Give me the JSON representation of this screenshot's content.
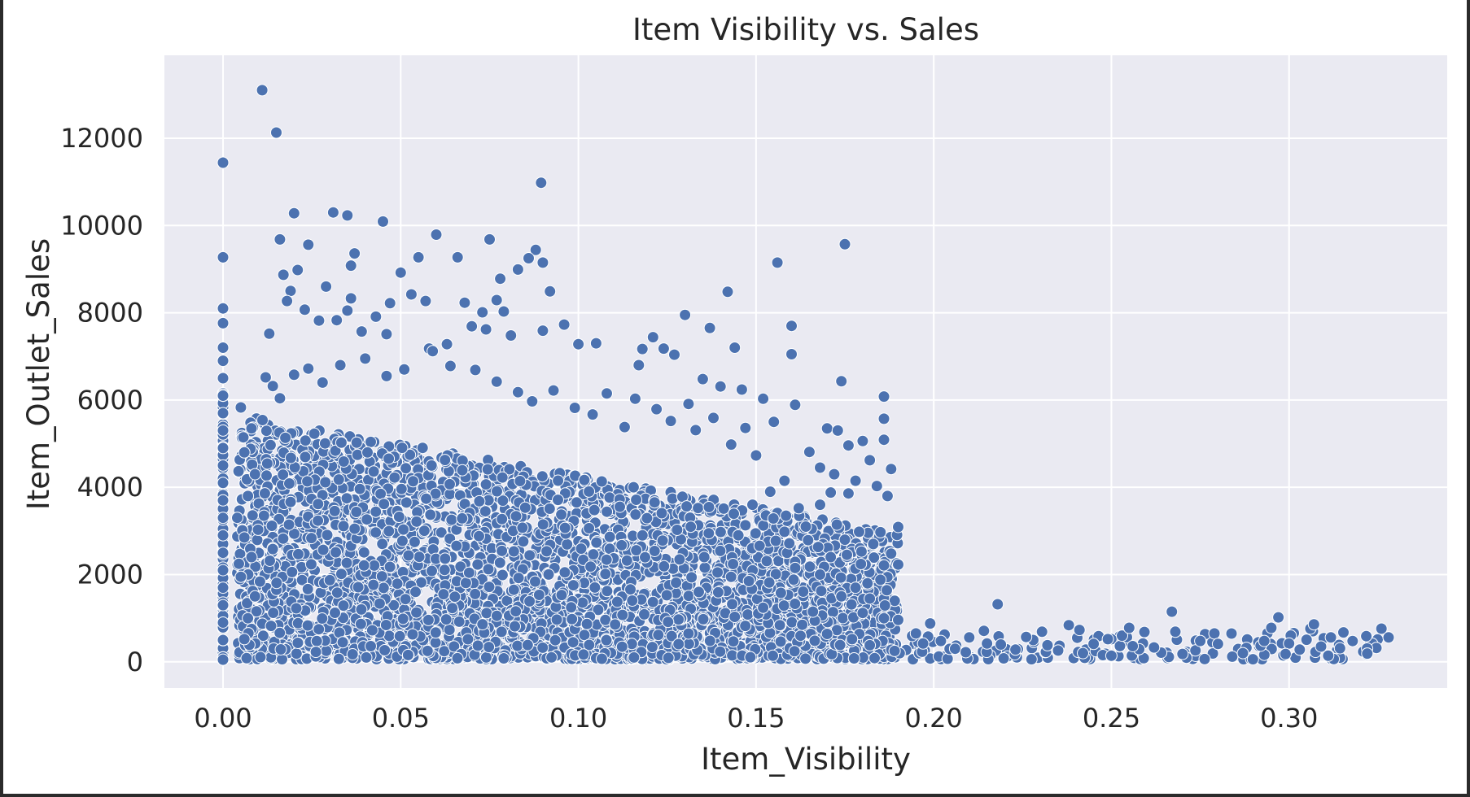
{
  "chart_data": {
    "type": "scatter",
    "title": "Item Visibility vs. Sales",
    "xlabel": "Item_Visibility",
    "ylabel": "Item_Outlet_Sales",
    "xlim": [
      -0.0165,
      0.3445
    ],
    "ylim": [
      -600,
      13900
    ],
    "xticks": [
      0.0,
      0.05,
      0.1,
      0.15,
      0.2,
      0.25,
      0.3
    ],
    "xtick_labels": [
      "0.00",
      "0.05",
      "0.10",
      "0.15",
      "0.20",
      "0.25",
      "0.30"
    ],
    "yticks": [
      0,
      2000,
      4000,
      6000,
      8000,
      10000,
      12000
    ],
    "ytick_labels": [
      "0",
      "2000",
      "4000",
      "6000",
      "8000",
      "10000",
      "12000"
    ],
    "grid": true,
    "colors": {
      "marker": "#4c72b0",
      "marker_edge": "#ffffff",
      "plot_bg": "#eaeaf2",
      "grid": "#ffffff"
    },
    "series": [
      {
        "values_xy": [
          [
            0.0,
            11440
          ],
          [
            0.0,
            9270
          ],
          [
            0.0,
            8100
          ],
          [
            0.0,
            7760
          ],
          [
            0.0,
            7200
          ],
          [
            0.0,
            6900
          ],
          [
            0.0,
            6500
          ],
          [
            0.0,
            6100
          ],
          [
            0.0,
            5700
          ],
          [
            0.0,
            5300
          ],
          [
            0.0,
            4900
          ],
          [
            0.0,
            4500
          ],
          [
            0.0,
            4100
          ],
          [
            0.0,
            3700
          ],
          [
            0.0,
            3300
          ],
          [
            0.0,
            2900
          ],
          [
            0.0,
            2500
          ],
          [
            0.0,
            2100
          ],
          [
            0.0,
            1700
          ],
          [
            0.0,
            1300
          ],
          [
            0.0,
            900
          ],
          [
            0.0,
            500
          ],
          [
            0.0,
            100
          ],
          [
            0.0,
            50
          ],
          [
            0.011,
            13100
          ],
          [
            0.015,
            12130
          ],
          [
            0.0895,
            10980
          ],
          [
            0.02,
            10280
          ],
          [
            0.031,
            10300
          ],
          [
            0.035,
            10230
          ],
          [
            0.045,
            10090
          ],
          [
            0.016,
            9680
          ],
          [
            0.024,
            9560
          ],
          [
            0.06,
            9790
          ],
          [
            0.075,
            9680
          ],
          [
            0.066,
            9270
          ],
          [
            0.055,
            9270
          ],
          [
            0.037,
            9360
          ],
          [
            0.036,
            9080
          ],
          [
            0.05,
            8920
          ],
          [
            0.017,
            8870
          ],
          [
            0.021,
            8980
          ],
          [
            0.029,
            8600
          ],
          [
            0.019,
            8500
          ],
          [
            0.078,
            8780
          ],
          [
            0.083,
            8990
          ],
          [
            0.088,
            9440
          ],
          [
            0.09,
            9150
          ],
          [
            0.086,
            9250
          ],
          [
            0.092,
            8490
          ],
          [
            0.053,
            8420
          ],
          [
            0.057,
            8270
          ],
          [
            0.077,
            8290
          ],
          [
            0.018,
            8270
          ],
          [
            0.023,
            8070
          ],
          [
            0.068,
            8230
          ],
          [
            0.073,
            8010
          ],
          [
            0.079,
            8030
          ],
          [
            0.036,
            8330
          ],
          [
            0.035,
            8050
          ],
          [
            0.047,
            8220
          ],
          [
            0.013,
            7520
          ],
          [
            0.027,
            7820
          ],
          [
            0.032,
            7830
          ],
          [
            0.039,
            7570
          ],
          [
            0.043,
            7910
          ],
          [
            0.046,
            7510
          ],
          [
            0.058,
            7180
          ],
          [
            0.063,
            7280
          ],
          [
            0.07,
            7690
          ],
          [
            0.074,
            7620
          ],
          [
            0.081,
            7480
          ],
          [
            0.09,
            7590
          ],
          [
            0.096,
            7730
          ],
          [
            0.1,
            7280
          ],
          [
            0.105,
            7300
          ],
          [
            0.121,
            7440
          ],
          [
            0.13,
            7950
          ],
          [
            0.137,
            7650
          ],
          [
            0.142,
            8480
          ],
          [
            0.156,
            9150
          ],
          [
            0.175,
            9570
          ],
          [
            0.16,
            7700
          ],
          [
            0.16,
            7050
          ],
          [
            0.144,
            7200
          ],
          [
            0.127,
            7040
          ],
          [
            0.124,
            7180
          ],
          [
            0.117,
            6800
          ],
          [
            0.118,
            7170
          ],
          [
            0.135,
            6480
          ],
          [
            0.14,
            6310
          ],
          [
            0.146,
            6240
          ],
          [
            0.152,
            6030
          ],
          [
            0.155,
            5500
          ],
          [
            0.161,
            5890
          ],
          [
            0.174,
            6430
          ],
          [
            0.186,
            6080
          ],
          [
            0.186,
            5570
          ],
          [
            0.186,
            5090
          ],
          [
            0.18,
            5060
          ],
          [
            0.182,
            4620
          ],
          [
            0.188,
            4420
          ],
          [
            0.184,
            4030
          ],
          [
            0.187,
            3800
          ],
          [
            0.19,
            3090
          ],
          [
            0.183,
            2700
          ],
          [
            0.186,
            2210
          ],
          [
            0.19,
            2230
          ],
          [
            0.188,
            2480
          ],
          [
            0.185,
            1880
          ],
          [
            0.182,
            1450
          ],
          [
            0.18,
            1120
          ],
          [
            0.186,
            1000
          ],
          [
            0.19,
            960
          ],
          [
            0.17,
            5350
          ],
          [
            0.173,
            5300
          ],
          [
            0.165,
            4810
          ],
          [
            0.168,
            4450
          ],
          [
            0.172,
            4300
          ],
          [
            0.176,
            4960
          ],
          [
            0.178,
            4150
          ],
          [
            0.176,
            3860
          ],
          [
            0.171,
            3880
          ],
          [
            0.168,
            3600
          ],
          [
            0.164,
            3100
          ],
          [
            0.175,
            2800
          ],
          [
            0.179,
            2980
          ],
          [
            0.171,
            2400
          ],
          [
            0.168,
            2000
          ],
          [
            0.178,
            1700
          ],
          [
            0.174,
            1500
          ],
          [
            0.166,
            1150
          ],
          [
            0.158,
            4150
          ],
          [
            0.154,
            3900
          ],
          [
            0.149,
            3600
          ],
          [
            0.162,
            3520
          ],
          [
            0.158,
            2980
          ],
          [
            0.151,
            2660
          ],
          [
            0.145,
            2900
          ],
          [
            0.153,
            2310
          ],
          [
            0.161,
            2150
          ],
          [
            0.148,
            1850
          ],
          [
            0.157,
            1580
          ],
          [
            0.152,
            1240
          ],
          [
            0.144,
            1030
          ],
          [
            0.163,
            850
          ],
          [
            0.17,
            640
          ],
          [
            0.177,
            520
          ],
          [
            0.182,
            380
          ],
          [
            0.189,
            250
          ],
          [
            0.21,
            560
          ],
          [
            0.215,
            420
          ],
          [
            0.218,
            1320
          ],
          [
            0.228,
            500
          ],
          [
            0.232,
            380
          ],
          [
            0.235,
            260
          ],
          [
            0.238,
            840
          ],
          [
            0.241,
            730
          ],
          [
            0.245,
            410
          ],
          [
            0.249,
            520
          ],
          [
            0.253,
            600
          ],
          [
            0.255,
            780
          ],
          [
            0.256,
            360
          ],
          [
            0.264,
            210
          ],
          [
            0.267,
            1150
          ],
          [
            0.268,
            690
          ],
          [
            0.27,
            180
          ],
          [
            0.275,
            480
          ],
          [
            0.279,
            650
          ],
          [
            0.28,
            410
          ],
          [
            0.284,
            120
          ],
          [
            0.288,
            320
          ],
          [
            0.292,
            370
          ],
          [
            0.295,
            780
          ],
          [
            0.297,
            1020
          ],
          [
            0.3,
            420
          ],
          [
            0.303,
            280
          ],
          [
            0.306,
            760
          ],
          [
            0.307,
            860
          ],
          [
            0.311,
            140
          ],
          [
            0.322,
            190
          ],
          [
            0.326,
            760
          ],
          [
            0.328,
            560
          ],
          [
            0.199,
            880
          ],
          [
            0.202,
            480
          ],
          [
            0.206,
            300
          ],
          [
            0.223,
            280
          ],
          [
            0.226,
            570
          ],
          [
            0.242,
            200
          ],
          [
            0.25,
            140
          ],
          [
            0.262,
            330
          ],
          [
            0.287,
            200
          ],
          [
            0.293,
            480
          ],
          [
            0.299,
            180
          ],
          [
            0.309,
            350
          ],
          [
            0.195,
            650
          ],
          [
            0.197,
            420
          ],
          [
            0.209,
            220
          ],
          [
            0.005,
            5830
          ],
          [
            0.008,
            5350
          ],
          [
            0.006,
            4800
          ],
          [
            0.009,
            4300
          ],
          [
            0.007,
            3800
          ],
          [
            0.004,
            3300
          ],
          [
            0.006,
            2850
          ],
          [
            0.008,
            2400
          ],
          [
            0.005,
            1950
          ],
          [
            0.009,
            1500
          ],
          [
            0.007,
            1000
          ],
          [
            0.006,
            520
          ],
          [
            0.012,
            6520
          ],
          [
            0.014,
            6320
          ],
          [
            0.016,
            6040
          ],
          [
            0.02,
            6580
          ],
          [
            0.024,
            6720
          ],
          [
            0.028,
            6400
          ],
          [
            0.033,
            6800
          ],
          [
            0.04,
            6950
          ],
          [
            0.046,
            6550
          ],
          [
            0.051,
            6700
          ],
          [
            0.059,
            7120
          ],
          [
            0.064,
            6780
          ],
          [
            0.071,
            6690
          ],
          [
            0.077,
            6420
          ],
          [
            0.083,
            6180
          ],
          [
            0.087,
            5970
          ],
          [
            0.093,
            6220
          ],
          [
            0.099,
            5820
          ],
          [
            0.104,
            5670
          ],
          [
            0.108,
            6150
          ],
          [
            0.113,
            5380
          ],
          [
            0.116,
            6030
          ],
          [
            0.122,
            5790
          ],
          [
            0.126,
            5520
          ],
          [
            0.131,
            5910
          ],
          [
            0.133,
            5310
          ],
          [
            0.138,
            5590
          ],
          [
            0.143,
            4980
          ],
          [
            0.147,
            5360
          ],
          [
            0.15,
            4730
          ]
        ]
      }
    ]
  }
}
